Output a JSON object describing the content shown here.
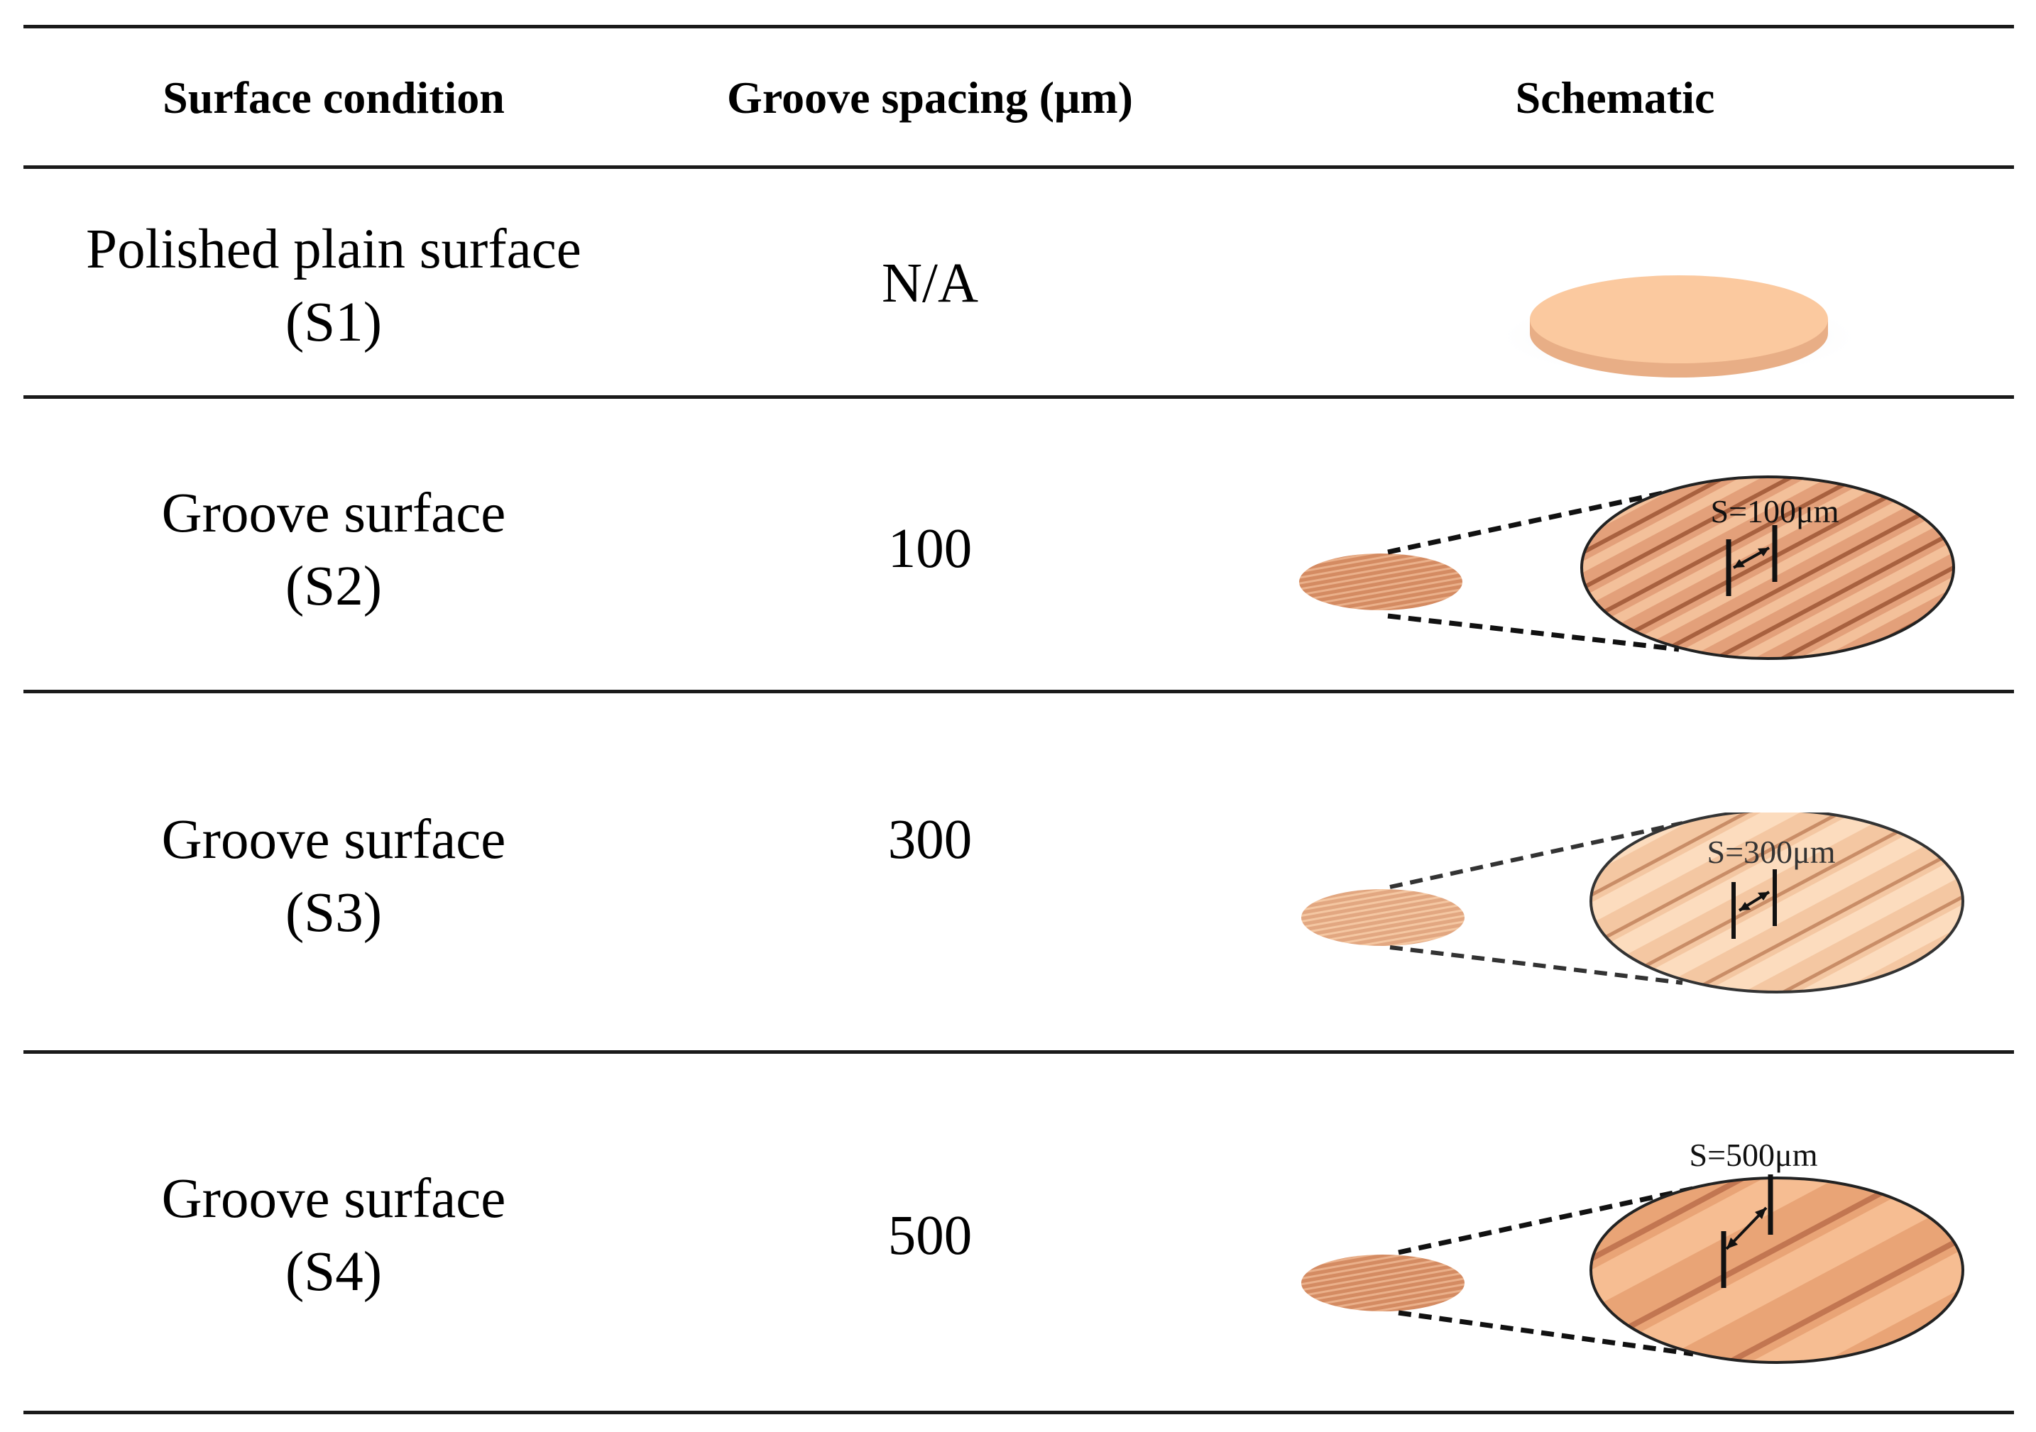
{
  "table": {
    "headers": {
      "surface_condition": "Surface condition",
      "groove_spacing": "Groove spacing (μm)",
      "schematic": "Schematic"
    },
    "rows": [
      {
        "condition_line1": "Polished plain surface",
        "condition_line2": "(S1)",
        "spacing": "N/A",
        "schematic_label": ""
      },
      {
        "condition_line1": "Groove surface",
        "condition_line2": "(S2)",
        "spacing": "100",
        "schematic_label": "S=100μm"
      },
      {
        "condition_line1": "Groove surface",
        "condition_line2": "(S3)",
        "spacing": "300",
        "schematic_label": "S=300μm"
      },
      {
        "condition_line1": "Groove surface",
        "condition_line2": "(S4)",
        "spacing": "500",
        "schematic_label": "S=500μm"
      }
    ]
  },
  "colors": {
    "copper_light": "#f8c89c",
    "copper": "#e9a174",
    "copper_dark": "#c9825c",
    "rule": "#1a1a1a"
  },
  "icons": {
    "plain_disc": "flat-copper-disc-icon",
    "grooved_disc": "grooved-copper-disc-icon",
    "magnifier": "zoom-ellipse-icon"
  }
}
